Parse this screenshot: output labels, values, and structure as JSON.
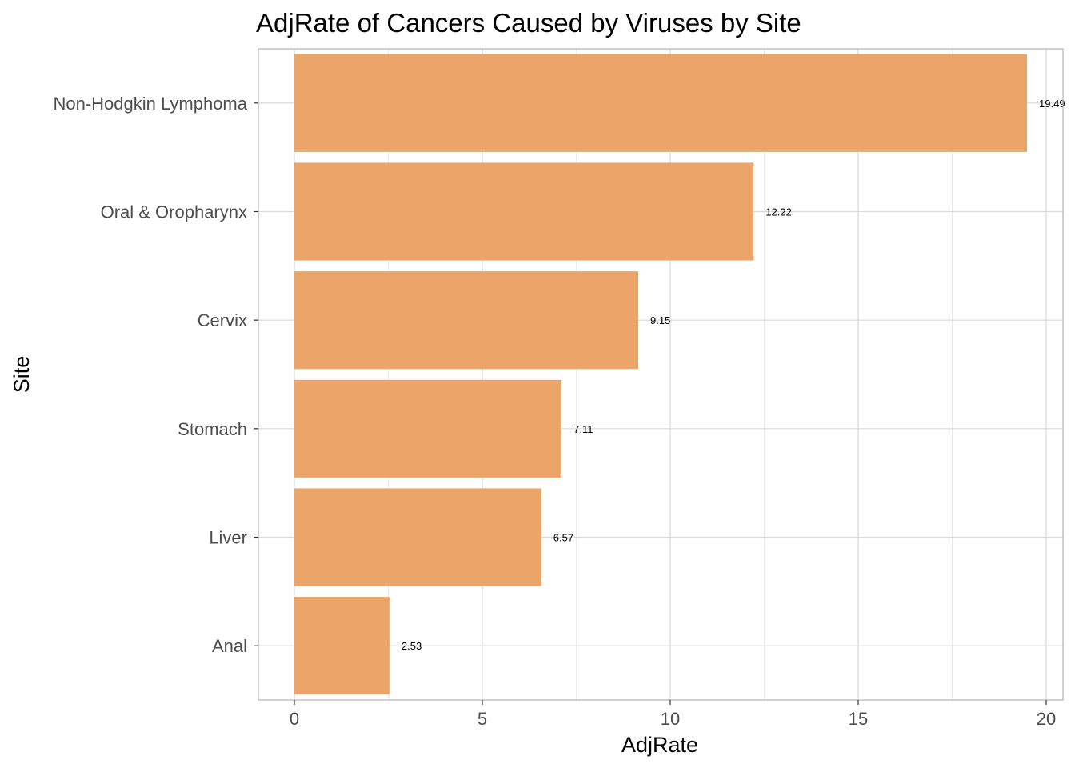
{
  "chart_data": {
    "type": "bar",
    "orientation": "horizontal",
    "title": "AdjRate of Cancers Caused by Viruses by Site",
    "xlabel": "AdjRate",
    "ylabel": "Site",
    "categories": [
      "Non-Hodgkin Lymphoma",
      "Oral & Oropharynx",
      "Cervix",
      "Stomach",
      "Liver",
      "Anal"
    ],
    "values": [
      19.49,
      12.22,
      9.15,
      7.11,
      6.57,
      2.53
    ],
    "data_labels": [
      "19.49",
      "12.22",
      "9.15",
      "7.11",
      "6.57",
      "2.53"
    ],
    "xlim": [
      -0.98,
      20.5
    ],
    "xticks": [
      0,
      5,
      10,
      15,
      20
    ],
    "grid": true,
    "legend": "none",
    "colors": {
      "bar": "#EBA569",
      "grid_major": "#d9d9d9",
      "grid_minor": "#ececec",
      "panel_border": "#b3b3b3",
      "tick_text": "#4d4d4d"
    }
  }
}
